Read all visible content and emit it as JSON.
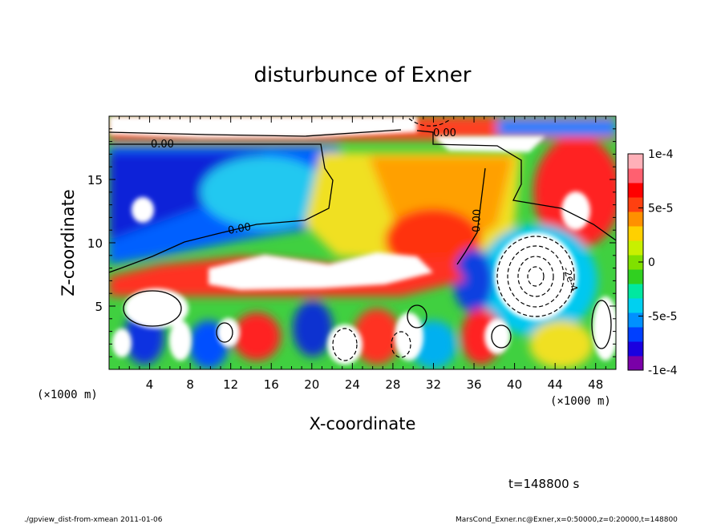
{
  "chart_data": {
    "type": "heatmap",
    "title": "disturbunce of Exner",
    "xlabel": "X-coordinate",
    "ylabel": "Z-coordinate",
    "x_unit": "(×1000 m)",
    "z_unit": "(×1000 m)",
    "xlim": [
      0,
      50
    ],
    "zlim": [
      0,
      20
    ],
    "x_ticks": [
      4,
      8,
      12,
      16,
      20,
      24,
      28,
      32,
      36,
      40,
      44,
      48
    ],
    "z_ticks": [
      5,
      10,
      15
    ],
    "contour_labels": [
      "0.00",
      "0.00",
      "0.00",
      "0.00",
      "-2e-4",
      "-2e-4"
    ],
    "colorbar": {
      "min": -0.0001,
      "max": 0.0001,
      "tick_values": [
        0.0001,
        5e-05,
        0,
        -5e-05,
        -0.0001
      ],
      "tick_labels": [
        "1e-4",
        "5e-5",
        "0",
        "-5e-5",
        "-1e-4"
      ],
      "colors": [
        "#7a00a8",
        "#1a00e0",
        "#0040ff",
        "#0090ff",
        "#00d0f0",
        "#00e8a0",
        "#30d020",
        "#80e000",
        "#c8f000",
        "#ffd000",
        "#ff9000",
        "#ff4010",
        "#ff0000",
        "#ff6070",
        "#ffb0b8"
      ]
    },
    "time_label": "t=148800 s",
    "footer_left": "./gpview_dist-from-xmean  2011-01-06",
    "footer_right": "MarsCond_Exner.nc@Exner,x=0:50000,z=0:20000,t=148800"
  }
}
